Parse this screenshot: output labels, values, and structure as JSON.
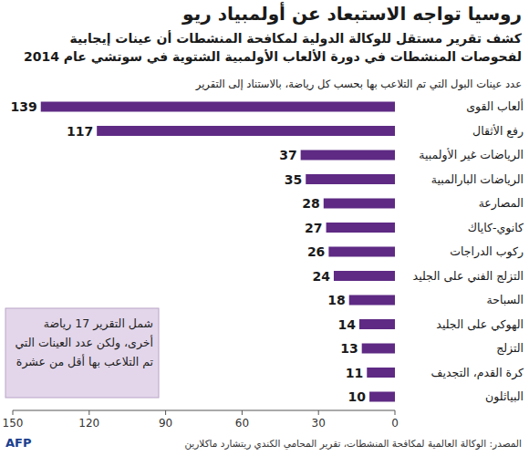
{
  "chart_data": {
    "type": "bar",
    "orientation": "horizontal",
    "title": "روسيا تواجه الاستبعاد عن أولمبياد ريو",
    "subtitle": "كشف تقرير مستقل للوكالة الدولية لمكافحة المنشطات أن عينات إيجابية لفحوصات المنشطات في دورة الألعاب الأولمبية الشتوية في سوتشي عام 2014",
    "xlabel": "عدد عينات البول التي تم التلاعب بها بحسب كل رياضة، بالاستناد إلى التقرير",
    "categories": [
      "ألعاب القوى",
      "رفع الأثقال",
      "الرياضات غير الأولمبية",
      "الرياضات البارالمبية",
      "المصارعة",
      "كانوي-كاياك",
      "ركوب الدراجات",
      "التزلج الفني على الجليد",
      "السباحة",
      "الهوكي على الجليد",
      "التزلج",
      "كرة القدم، التجديف",
      "البياثلون"
    ],
    "values": [
      139,
      117,
      37,
      35,
      28,
      27,
      26,
      24,
      18,
      14,
      13,
      11,
      10
    ],
    "color": "#5e2a84",
    "xlim": [
      0,
      150
    ],
    "xticks": [
      0,
      30,
      60,
      90,
      120,
      150
    ],
    "grid": false,
    "data_labels": true,
    "annotation": "شمل التقرير 17 رياضة أخرى، ولكن عدد العينات التي تم التلاعب بها أقل من عشرة",
    "source": "المصدر: الوكالة العالمية لمكافحة المنشطات، تقرير المحامي الكندي ريتشارد ماكلارين",
    "credit": "AFP"
  }
}
